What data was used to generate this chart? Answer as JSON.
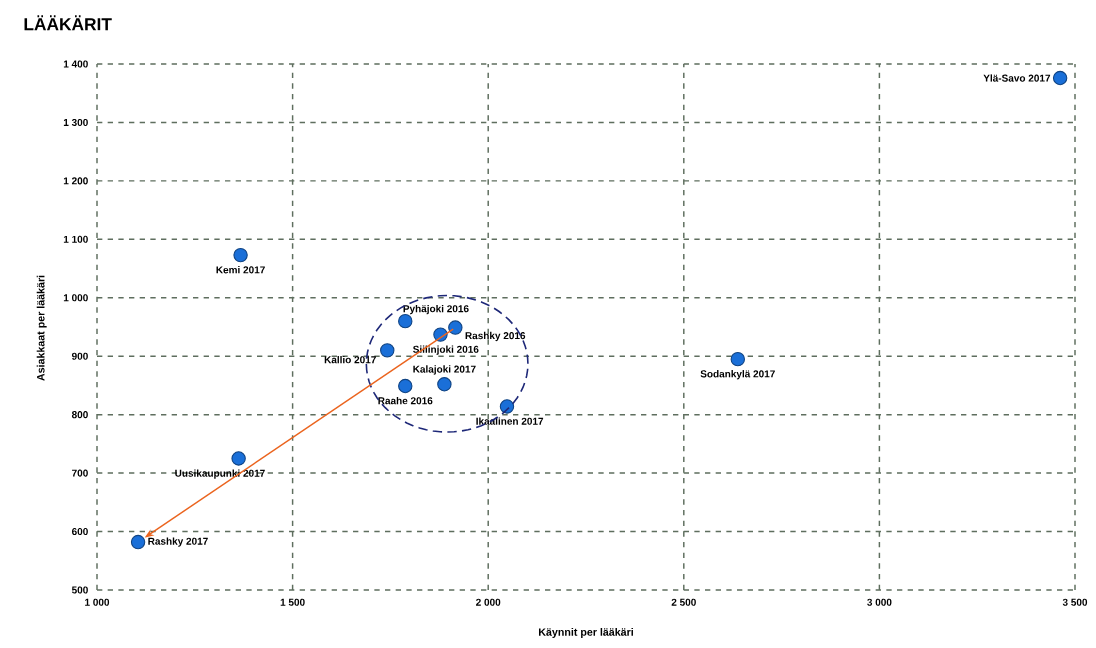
{
  "chart_data": {
    "type": "scatter",
    "title": "LÄÄKÄRIT",
    "xlabel": "Käynnit per lääkäri",
    "ylabel": "Asiakkaat per lääkäri",
    "x": [
      3462,
      1367,
      1788,
      1878,
      1916,
      1742,
      1888,
      1788,
      2048,
      2638,
      1362,
      1105
    ],
    "values": [
      1376,
      1073,
      960,
      937,
      949,
      910,
      852,
      849,
      814,
      895,
      725,
      582
    ],
    "color": "#1a6fd8",
    "marker": "circle",
    "grid": true,
    "xlim": [
      1000,
      3500
    ],
    "ylim": [
      500,
      1400
    ],
    "xticks": [
      {
        "value": 1000,
        "label": "1 000"
      },
      {
        "value": 1500,
        "label": "1 500"
      },
      {
        "value": 2000,
        "label": "2 000"
      },
      {
        "value": 2500,
        "label": "2 500"
      },
      {
        "value": 3000,
        "label": "3 000"
      },
      {
        "value": 3500,
        "label": "3 500"
      }
    ],
    "yticks": [
      {
        "value": 500,
        "label": "500"
      },
      {
        "value": 600,
        "label": "600"
      },
      {
        "value": 700,
        "label": "700"
      },
      {
        "value": 800,
        "label": "800"
      },
      {
        "value": 900,
        "label": "900"
      },
      {
        "value": 1000,
        "label": "1 000"
      },
      {
        "value": 1100,
        "label": "1 100"
      },
      {
        "value": 1200,
        "label": "1 200"
      },
      {
        "value": 1300,
        "label": "1 300"
      },
      {
        "value": 1400,
        "label": "1 400"
      }
    ],
    "annotations": [
      {
        "text": "Ylä-Savo 2017",
        "x": 3462,
        "y": 1376
      },
      {
        "text": "Kemi 2017",
        "x": 1367,
        "y": 1073
      },
      {
        "text": "Pyhäjoki 2016",
        "x": 1788,
        "y": 960
      },
      {
        "text": "Siilinjoki 2016",
        "x": 1878,
        "y": 937
      },
      {
        "text": "Rashky 2016",
        "x": 1916,
        "y": 949
      },
      {
        "text": "Kallio 2017",
        "x": 1742,
        "y": 910
      },
      {
        "text": "Kalajoki 2017",
        "x": 1888,
        "y": 852
      },
      {
        "text": "Raahe 2016",
        "x": 1788,
        "y": 849
      },
      {
        "text": "Ikaalinen 2017",
        "x": 2048,
        "y": 814
      },
      {
        "text": "Sodankylä 2017",
        "x": 2638,
        "y": 895
      },
      {
        "text": "Uusikaupunki 2017",
        "x": 1362,
        "y": 725
      },
      {
        "text": "Rashky 2017",
        "x": 1105,
        "y": 582
      }
    ]
  }
}
